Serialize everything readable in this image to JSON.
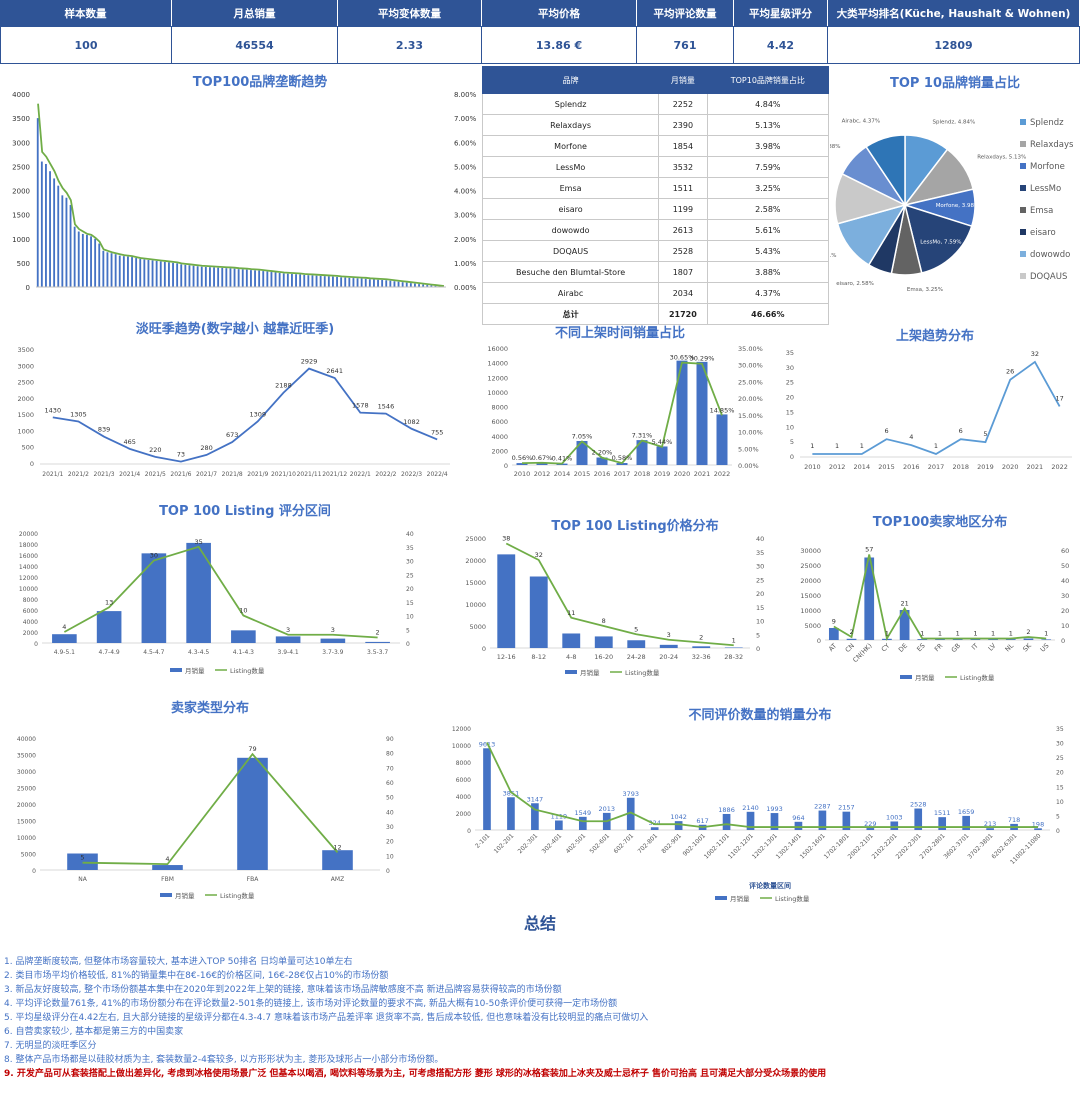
{
  "kpi": {
    "headers": [
      "样本数量",
      "月总销量",
      "平均变体数量",
      "平均价格",
      "平均评论数量",
      "平均星级评分",
      "大类平均排名(Küche, Haushalt & Wohnen)"
    ],
    "values": [
      "100",
      "46554",
      "2.33",
      "13.86 €",
      "761",
      "4.42",
      "12809"
    ]
  },
  "titles": {
    "trend": "TOP100品牌垄断趋势",
    "pie": "TOP 10品牌销量占比",
    "season": "淡旺季趋势(数字越小 越靠近旺季)",
    "launch": "不同上架时间销量占比",
    "launch_trend": "上架趋势分布",
    "rating": "TOP 100 Listing 评分区间",
    "price": "TOP 100 Listing价格分布",
    "region": "TOP100卖家地区分布",
    "seller": "卖家类型分布",
    "reviews": "不同评价数量的销量分布",
    "summary": "总结"
  },
  "brand_table": {
    "headers": [
      "品牌",
      "月销量",
      "TOP10品牌销量占比"
    ],
    "rows": [
      [
        "Splendz",
        "2252",
        "4.84%"
      ],
      [
        "Relaxdays",
        "2390",
        "5.13%"
      ],
      [
        "Morfone",
        "1854",
        "3.98%"
      ],
      [
        "LessMo",
        "3532",
        "7.59%"
      ],
      [
        "Emsa",
        "1511",
        "3.25%"
      ],
      [
        "eisaro",
        "1199",
        "2.58%"
      ],
      [
        "dowowdo",
        "2613",
        "5.61%"
      ],
      [
        "DOQAUS",
        "2528",
        "5.43%"
      ],
      [
        "Besuche den Blumtal-Store",
        "1807",
        "3.88%"
      ],
      [
        "Airabc",
        "2034",
        "4.37%"
      ]
    ],
    "total": [
      "总计",
      "21720",
      "46.66%"
    ]
  },
  "legend_labels": {
    "sales": "月销量",
    "count": "Listing数量",
    "reviews_xlabel": "评论数量区间"
  },
  "summary_lines": [
    "1. 品牌垄断度较高, 但整体市场容量较大, 基本进入TOP 50排名 日均单量可达10单左右",
    "2. 类目市场平均价格较低, 81%的销量集中在8€-16€的价格区间, 16€-28€仅占10%的市场份额",
    "3. 新品友好度较高, 整个市场份额基本集中在2020年到2022年上架的链接, 意味着该市场品牌敏感度不高 新进品牌容易获得较高的市场份额",
    "4. 平均评论数量761条, 41%的市场份额分布在评论数量2-501条的链接上, 该市场对评论数量的要求不高, 新品大概有10-50条评价便可获得一定市场份额",
    "5. 平均星级评分在4.42左右, 且大部分链接的星级评分都在4.3-4.7 意味着该市场产品差评率 退货率不高, 售后成本较低, 但也意味着没有比较明显的痛点可做切入",
    "6. 自营卖家较少, 基本都是第三方的中国卖家",
    "7. 无明显的淡旺季区分",
    "8. 整体产品市场都是以硅胶材质为主, 套装数量2-4套较多, 以方形形状为主, 菱形及球形占一小部分市场份额。",
    "9. 开发产品可从套装搭配上做出差异化, 考虑到冰格使用场景广泛 但基本以喝酒, 喝饮料等场景为主, 可考虑搭配方形 菱形 球形的冰格套装加上冰夹及威士忌杯子 售价可抬高 且可满足大部分受众场景的使用"
  ],
  "chart_data": [
    {
      "id": "trend",
      "type": "bar",
      "title": "TOP100品牌垄断趋势",
      "values": [
        3500,
        2600,
        2550,
        2400,
        2250,
        2100,
        1900,
        1850,
        1700,
        1250,
        1150,
        1100,
        1080,
        1050,
        1000,
        900,
        750,
        720,
        700,
        680,
        650,
        640,
        630,
        620,
        600,
        580,
        570,
        560,
        550,
        540,
        530,
        520,
        510,
        500,
        490,
        470,
        460,
        450,
        440,
        430,
        420,
        415,
        410,
        405,
        400,
        395,
        390,
        385,
        380,
        370,
        365,
        360,
        350,
        345,
        340,
        330,
        320,
        310,
        300,
        290,
        280,
        275,
        270,
        265,
        260,
        250,
        245,
        240,
        235,
        230,
        225,
        220,
        215,
        210,
        200,
        195,
        190,
        185,
        180,
        175,
        170,
        160,
        155,
        150,
        145,
        140,
        130,
        120,
        110,
        100,
        90,
        80,
        70,
        60,
        50,
        40,
        30,
        20,
        15,
        10
      ],
      "line": [
        3800,
        2800,
        2700,
        2550,
        2400,
        2200,
        2050,
        1950,
        1800,
        1300,
        1200,
        1150,
        1100,
        1080,
        1020,
        940,
        780,
        750,
        720,
        700,
        680,
        660,
        650,
        640,
        620,
        600,
        590,
        580,
        570,
        560,
        550,
        540,
        530,
        520,
        510,
        490,
        480,
        470,
        460,
        450,
        440,
        435,
        430,
        425,
        420,
        415,
        410,
        405,
        400,
        390,
        385,
        380,
        370,
        365,
        360,
        350,
        340,
        330,
        320,
        310,
        300,
        295,
        290,
        285,
        280,
        270,
        265,
        260,
        255,
        250,
        245,
        240,
        235,
        230,
        220,
        215,
        210,
        205,
        200,
        195,
        190,
        180,
        175,
        170,
        165,
        160,
        150,
        140,
        130,
        120,
        110,
        100,
        90,
        80,
        70,
        60,
        50,
        40,
        30,
        20
      ],
      "ylim": [
        0,
        4000
      ],
      "yticks": [
        0,
        500,
        1000,
        1500,
        2000,
        2500,
        3000,
        3500,
        4000
      ],
      "y2ticks": [
        "0.00%",
        "1.00%",
        "2.00%",
        "3.00%",
        "4.00%",
        "5.00%",
        "6.00%",
        "7.00%",
        "8.00%"
      ]
    },
    {
      "id": "pie",
      "type": "pie",
      "title": "TOP 10品牌销量占比",
      "labels": [
        "Splendz",
        "Relaxdays",
        "Morfone",
        "LessMo",
        "Emsa",
        "eisaro",
        "dowowdo",
        "DOQAUS",
        "Besuche den Blumtal-Store",
        "Airabc"
      ],
      "values": [
        4.84,
        5.13,
        3.98,
        7.59,
        3.25,
        2.58,
        5.61,
        5.43,
        3.88,
        4.37
      ],
      "data_labels": [
        "Splendz, 4.84%",
        "Relaxdays, 5.13%",
        "Morfone, 3.98%",
        "LessMo, 7.59%",
        "Emsa, 3.25%",
        "eisaro, 2.58%",
        "dowowdo, 5.61%",
        "DOQAUS, 5.43%",
        "Besuche den Blumtal-Store, 3.88%",
        "Airabc, 4.37%"
      ],
      "colors": [
        "#5b9bd5",
        "#a5a5a5",
        "#4472c4",
        "#264478",
        "#636363",
        "#1f3864",
        "#7cafdd",
        "#c9c9c9",
        "#698ed0",
        "#2e75b6"
      ],
      "legend": [
        "Splendz",
        "Relaxdays",
        "Morfone",
        "LessMo",
        "Emsa",
        "eisaro",
        "dowowdo",
        "DOQAUS"
      ]
    },
    {
      "id": "season",
      "type": "line",
      "title": "淡旺季趋势(数字越小 越靠近旺季)",
      "categories": [
        "2021/1",
        "2021/2",
        "2021/3",
        "2021/4",
        "2021/5",
        "2021/6",
        "2021/7",
        "2021/8",
        "2021/9",
        "2021/10",
        "2021/11",
        "2021/12",
        "2022/1",
        "2022/2",
        "2022/3",
        "2022/4"
      ],
      "values": [
        1430,
        1305,
        839,
        465,
        220,
        73,
        280,
        673,
        1309,
        2188,
        2929,
        2641,
        1578,
        1546,
        1082,
        755
      ],
      "ylim": [
        0,
        3500
      ],
      "yticks": [
        0,
        500,
        1000,
        1500,
        2000,
        2500,
        3000,
        3500
      ]
    },
    {
      "id": "launch",
      "type": "bar",
      "title": "不同上架时间销量占比",
      "categories": [
        "2010",
        "2012",
        "2014",
        "2015",
        "2016",
        "2017",
        "2018",
        "2019",
        "2020",
        "2021",
        "2022"
      ],
      "values": [
        261,
        312,
        191,
        3282,
        1024,
        270,
        3403,
        2535,
        14269,
        14104,
        6917
      ],
      "line": [
        0.56,
        0.67,
        0.41,
        7.05,
        2.2,
        0.58,
        7.31,
        5.44,
        30.65,
        30.29,
        14.85
      ],
      "line_labels": [
        "0.56%",
        "0.67%",
        "0.41%",
        "7.05%",
        "2.20%",
        "0.58%",
        "7.31%",
        "5.44%",
        "30.65%",
        "30.29%",
        "14.85%"
      ],
      "ylim": [
        0,
        16000
      ],
      "yticks": [
        0,
        2000,
        4000,
        6000,
        8000,
        10000,
        12000,
        14000,
        16000
      ],
      "y2ticks": [
        "0.00%",
        "5.00%",
        "10.00%",
        "15.00%",
        "20.00%",
        "25.00%",
        "30.00%",
        "35.00%"
      ]
    },
    {
      "id": "launch_trend",
      "type": "line",
      "title": "上架趋势分布",
      "categories": [
        "2010",
        "2012",
        "2014",
        "2015",
        "2016",
        "2017",
        "2018",
        "2019",
        "2020",
        "2021",
        "2022"
      ],
      "values": [
        1,
        1,
        1,
        6,
        4,
        1,
        6,
        5,
        26,
        32,
        17
      ],
      "ylim": [
        0,
        35
      ],
      "yticks": [
        0,
        5,
        10,
        15,
        20,
        25,
        30,
        35
      ]
    },
    {
      "id": "rating",
      "type": "bar",
      "title": "TOP 100 Listing 评分区间",
      "categories": [
        "4.9-5.1",
        "4.7-4.9",
        "4.5-4.7",
        "4.3-4.5",
        "4.1-4.3",
        "3.9-4.1",
        "3.7-3.9",
        "3.5-3.7"
      ],
      "values": [
        1600,
        5800,
        16300,
        18200,
        2300,
        1200,
        800,
        200
      ],
      "line": [
        4,
        13,
        30,
        35,
        10,
        3,
        3,
        2
      ],
      "ylim": [
        0,
        20000
      ],
      "yticks": [
        0,
        2000,
        4000,
        6000,
        8000,
        10000,
        12000,
        14000,
        16000,
        18000,
        20000
      ],
      "y2ticks": [
        0,
        5,
        10,
        15,
        20,
        25,
        30,
        35,
        40
      ]
    },
    {
      "id": "price",
      "type": "bar",
      "title": "TOP 100 Listing价格分布",
      "categories": [
        "12-16",
        "8-12",
        "4-8",
        "16-20",
        "24-28",
        "20-24",
        "32-36",
        "28-32"
      ],
      "values": [
        21279,
        16250,
        3299,
        2631,
        1760,
        719,
        381,
        115
      ],
      "line": [
        38,
        32,
        11,
        8,
        5,
        3,
        2,
        1
      ],
      "ylim": [
        0,
        25000
      ],
      "yticks": [
        0,
        5000,
        10000,
        15000,
        20000,
        25000
      ],
      "y2ticks": [
        0,
        5,
        10,
        15,
        20,
        25,
        30,
        35,
        40
      ]
    },
    {
      "id": "region",
      "type": "bar",
      "title": "TOP100卖家地区分布",
      "categories": [
        "AT",
        "CN",
        "CN(HK)",
        "CY",
        "DE",
        "ES",
        "FR",
        "GB",
        "IT",
        "LV",
        "NL",
        "SK",
        "US"
      ],
      "values": [
        4000,
        400,
        27500,
        400,
        10000,
        300,
        300,
        300,
        300,
        300,
        300,
        500,
        200
      ],
      "line": [
        9,
        2,
        57,
        1,
        21,
        1,
        1,
        1,
        1,
        1,
        1,
        2,
        1
      ],
      "ylim": [
        0,
        30000
      ],
      "yticks": [
        0,
        5000,
        10000,
        15000,
        20000,
        25000,
        30000
      ],
      "y2ticks": [
        0,
        10,
        20,
        30,
        40,
        50,
        60
      ]
    },
    {
      "id": "seller",
      "type": "bar",
      "title": "卖家类型分布",
      "categories": [
        "NA",
        "FBM",
        "FBA",
        "AMZ"
      ],
      "values": [
        5000,
        1500,
        34000,
        6000
      ],
      "line": [
        5,
        4,
        79,
        12
      ],
      "ylim": [
        0,
        40000
      ],
      "yticks": [
        0,
        5000,
        10000,
        15000,
        20000,
        25000,
        30000,
        35000,
        40000
      ],
      "y2ticks": [
        0,
        10,
        20,
        30,
        40,
        50,
        60,
        70,
        80,
        90
      ]
    },
    {
      "id": "reviews",
      "type": "bar",
      "title": "不同评价数量的销量分布",
      "xlabel": "评论数量区间",
      "categories": [
        "2-101",
        "102-201",
        "202-301",
        "302-401",
        "402-501",
        "502-601",
        "602-701",
        "702-801",
        "802-901",
        "902-1001",
        "1002-1101",
        "1102-1201",
        "1202-1301",
        "1302-1401",
        "1502-1601",
        "1702-1801",
        "2002-2101",
        "2102-2201",
        "2202-2301",
        "2702-2801",
        "3602-3701",
        "3702-3801",
        "6202-6301",
        "11002-11080"
      ],
      "values": [
        9613,
        3851,
        3147,
        1119,
        1549,
        2013,
        3793,
        324,
        1042,
        617,
        1886,
        2140,
        1993,
        964,
        2287,
        2157,
        229,
        1003,
        2528,
        1511,
        1659,
        213,
        718,
        198
      ],
      "line": [
        30,
        13,
        7,
        5,
        3,
        3,
        6,
        2,
        2,
        1,
        2,
        1,
        1,
        1,
        1,
        1,
        1,
        1,
        1,
        1,
        1,
        1,
        1,
        1
      ],
      "ylim": [
        0,
        12000
      ],
      "yticks": [
        0,
        2000,
        4000,
        6000,
        8000,
        10000,
        12000
      ],
      "y2ticks": [
        0,
        5,
        10,
        15,
        20,
        25,
        30,
        35
      ]
    }
  ]
}
